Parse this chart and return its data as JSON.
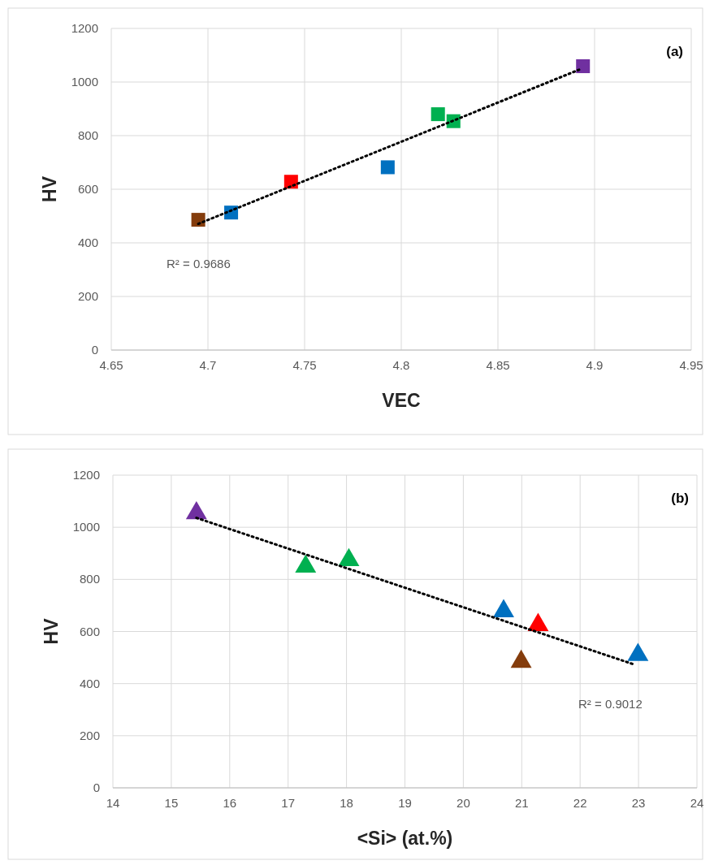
{
  "chart_data": [
    {
      "type": "scatter",
      "xlabel": "VEC",
      "ylabel": "HV",
      "annotations": [
        "(a)",
        "R² = 0.9686"
      ],
      "xlim": [
        4.65,
        4.95
      ],
      "xticks": [
        4.65,
        4.7,
        4.75,
        4.8,
        4.85,
        4.9,
        4.95
      ],
      "ylim": [
        0,
        1200
      ],
      "yticks": [
        0,
        200,
        400,
        600,
        800,
        1000,
        1200
      ],
      "grid": true,
      "marker": "square",
      "series": [
        {
          "x": [
            4.695,
            4.712,
            4.743,
            4.793,
            4.819,
            4.827,
            4.894
          ],
          "values": [
            486,
            513,
            628,
            682,
            880,
            854,
            1059
          ],
          "colors": [
            "#843c0c",
            "#0070c0",
            "#ff0000",
            "#0070c0",
            "#00b050",
            "#00b050",
            "#7030a0"
          ]
        },
        {
          "type": "line",
          "x": [
            4.695,
            4.892
          ],
          "values": [
            471,
            1046
          ],
          "color": "#000000",
          "line_style": "dotted",
          "marker": "none"
        }
      ]
    },
    {
      "type": "scatter",
      "xlabel": "<Si> (at.%)",
      "ylabel": "HV",
      "annotations": [
        "(b)",
        "R² = 0.9012"
      ],
      "xlim": [
        14,
        24
      ],
      "xticks": [
        14,
        15,
        16,
        17,
        18,
        19,
        20,
        21,
        22,
        23,
        24
      ],
      "ylim": [
        0,
        1200
      ],
      "yticks": [
        0,
        200,
        400,
        600,
        800,
        1000,
        1200
      ],
      "grid": true,
      "marker": "triangle",
      "series": [
        {
          "x": [
            15.43,
            17.3,
            18.04,
            20.69,
            21.28,
            20.99,
            22.99
          ],
          "values": [
            1054,
            849,
            874,
            678,
            625,
            484,
            510
          ],
          "colors": [
            "#7030a0",
            "#00b050",
            "#00b050",
            "#0070c0",
            "#ff0000",
            "#843c0c",
            "#0070c0"
          ]
        },
        {
          "type": "line",
          "x": [
            15.43,
            22.93
          ],
          "values": [
            1036,
            473
          ],
          "color": "#000000",
          "line_style": "dotted",
          "marker": "none"
        }
      ]
    }
  ]
}
